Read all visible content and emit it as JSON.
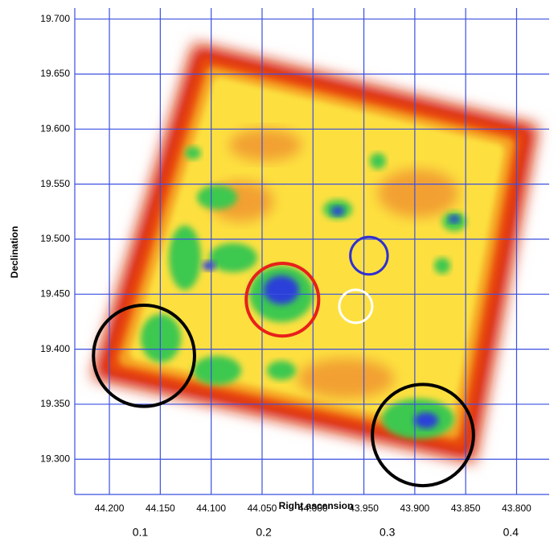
{
  "chart_data": {
    "type": "skymap",
    "xlabel": "Right ascension",
    "ylabel": "Declination",
    "xlim": [
      44.234,
      43.768
    ],
    "ylim": [
      19.268,
      19.71
    ],
    "xticks": [
      {
        "value": 44.2,
        "label": "44.200"
      },
      {
        "value": 44.15,
        "label": "44.150"
      },
      {
        "value": 44.1,
        "label": "44.100"
      },
      {
        "value": 44.05,
        "label": "44.050"
      },
      {
        "value": 44.0,
        "label": "44.000"
      },
      {
        "value": 43.95,
        "label": "43.950"
      },
      {
        "value": 43.9,
        "label": "43.900"
      },
      {
        "value": 43.85,
        "label": "43.850"
      },
      {
        "value": 43.8,
        "label": "43.800"
      }
    ],
    "yticks": [
      {
        "value": 19.3,
        "label": "19.300"
      },
      {
        "value": 19.35,
        "label": "19.350"
      },
      {
        "value": 19.4,
        "label": "19.400"
      },
      {
        "value": 19.45,
        "label": "19.450"
      },
      {
        "value": 19.5,
        "label": "19.500"
      },
      {
        "value": 19.55,
        "label": "19.550"
      },
      {
        "value": 19.6,
        "label": "19.600"
      },
      {
        "value": 19.65,
        "label": "19.650"
      },
      {
        "value": 19.7,
        "label": "19.700"
      }
    ],
    "x2lim": [
      0.047,
      0.431
    ],
    "x2ticks": [
      0.1,
      0.2,
      0.3,
      0.4
    ],
    "grid": true,
    "grid_color": "#3a4fe0",
    "regions": [
      {
        "x": 44.03,
        "y": 19.445,
        "radius": 0.033,
        "color": "#e8201a"
      },
      {
        "x": 43.945,
        "y": 19.485,
        "radius": 0.017,
        "color": "#3030d0"
      },
      {
        "x": 43.958,
        "y": 19.439,
        "radius": 0.015,
        "color": "#ffffff"
      },
      {
        "x": 44.166,
        "y": 19.394,
        "radius": 0.046,
        "color": "#000000"
      },
      {
        "x": 43.892,
        "y": 19.322,
        "radius": 0.046,
        "color": "#000000"
      }
    ]
  }
}
